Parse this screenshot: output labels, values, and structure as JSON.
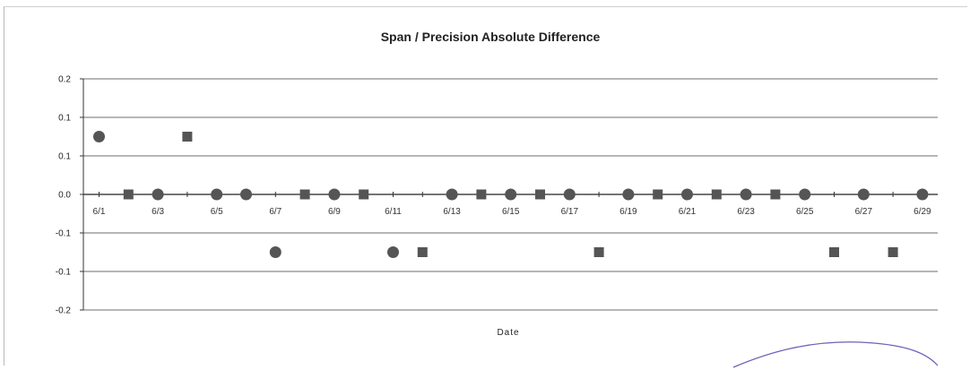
{
  "chart_data": {
    "type": "scatter",
    "title": "Span / Precision Absolute Difference",
    "xlabel": "Date",
    "ylabel": "",
    "y_tick_labels": [
      "0.2",
      "0.1",
      "0.1",
      "0.0",
      "-0.1",
      "-0.1",
      "-0.2"
    ],
    "x_tick_labels": [
      "6/1",
      "6/3",
      "6/5",
      "6/7",
      "6/9",
      "6/11",
      "6/13",
      "6/15",
      "6/17",
      "6/19",
      "6/21",
      "6/23",
      "6/25",
      "6/27",
      "6/29"
    ],
    "x_range_days": [
      1,
      29
    ],
    "ylim": [
      -0.2,
      0.2
    ],
    "grid": "horizontal",
    "legend": "none",
    "series": [
      {
        "marker": "circle",
        "color": "#555555",
        "points": [
          {
            "x": "6/1",
            "y": 0.1
          },
          {
            "x": "6/3",
            "y": 0.0
          },
          {
            "x": "6/5",
            "y": 0.0
          },
          {
            "x": "6/6",
            "y": 0.0
          },
          {
            "x": "6/7",
            "y": -0.1
          },
          {
            "x": "6/9",
            "y": 0.0
          },
          {
            "x": "6/11",
            "y": -0.1
          },
          {
            "x": "6/13",
            "y": 0.0
          },
          {
            "x": "6/15",
            "y": 0.0
          },
          {
            "x": "6/17",
            "y": 0.0
          },
          {
            "x": "6/19",
            "y": 0.0
          },
          {
            "x": "6/21",
            "y": 0.0
          },
          {
            "x": "6/23",
            "y": 0.0
          },
          {
            "x": "6/25",
            "y": 0.0
          },
          {
            "x": "6/27",
            "y": 0.0
          },
          {
            "x": "6/29",
            "y": 0.0
          }
        ]
      },
      {
        "marker": "square",
        "color": "#555555",
        "points": [
          {
            "x": "6/2",
            "y": 0.0
          },
          {
            "x": "6/4",
            "y": 0.1
          },
          {
            "x": "6/8",
            "y": 0.0
          },
          {
            "x": "6/10",
            "y": 0.0
          },
          {
            "x": "6/12",
            "y": -0.1
          },
          {
            "x": "6/14",
            "y": 0.0
          },
          {
            "x": "6/16",
            "y": 0.0
          },
          {
            "x": "6/18",
            "y": -0.1
          },
          {
            "x": "6/20",
            "y": 0.0
          },
          {
            "x": "6/22",
            "y": 0.0
          },
          {
            "x": "6/24",
            "y": 0.0
          },
          {
            "x": "6/26",
            "y": -0.1
          },
          {
            "x": "6/28",
            "y": -0.1
          }
        ]
      }
    ]
  }
}
